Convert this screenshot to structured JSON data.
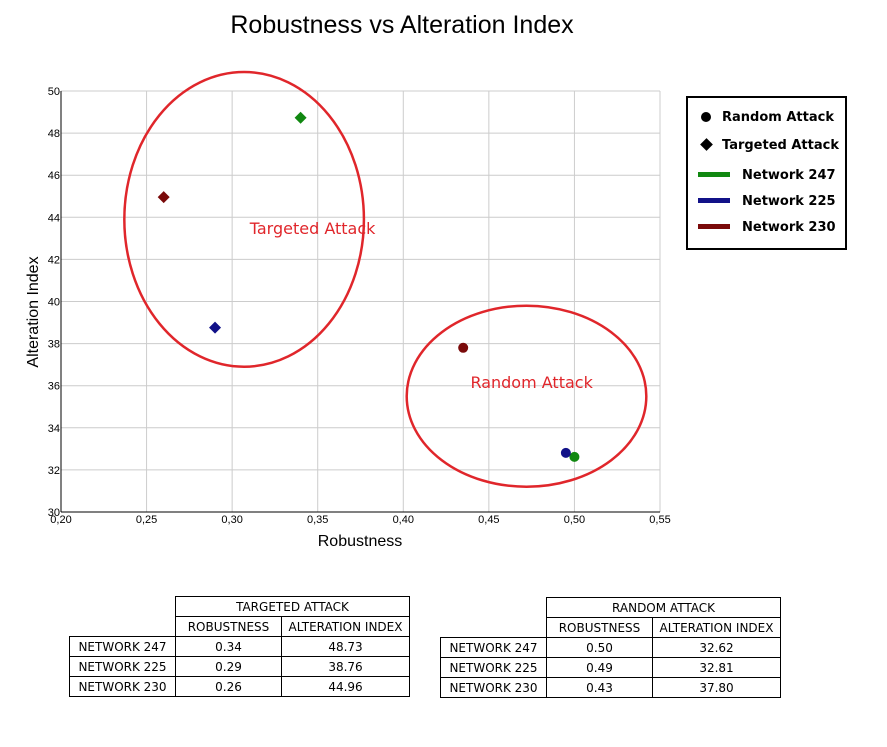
{
  "chart_data": {
    "type": "scatter",
    "title": "Robustness vs Alteration Index",
    "xlabel": "Robustness",
    "ylabel": "Alteration Index",
    "xlim": [
      0.2,
      0.55
    ],
    "ylim": [
      30,
      50
    ],
    "xticks": [
      "0,20",
      "0,25",
      "0,30",
      "0,35",
      "0,40",
      "0,45",
      "0,50",
      "0,55"
    ],
    "yticks": [
      "30",
      "32",
      "34",
      "36",
      "38",
      "40",
      "42",
      "44",
      "46",
      "48",
      "50"
    ],
    "xtick_values": [
      0.2,
      0.25,
      0.3,
      0.35,
      0.4,
      0.45,
      0.5,
      0.55
    ],
    "ytick_values": [
      30,
      32,
      34,
      36,
      38,
      40,
      42,
      44,
      46,
      48,
      50
    ],
    "grid": true,
    "legend_position": "right",
    "series": [
      {
        "name": "Network 247",
        "color": "#118811",
        "points": [
          {
            "attack": "targeted",
            "x": 0.34,
            "y": 48.73
          },
          {
            "attack": "random",
            "x": 0.5,
            "y": 32.62
          }
        ]
      },
      {
        "name": "Network 225",
        "color": "#111188",
        "points": [
          {
            "attack": "targeted",
            "x": 0.29,
            "y": 38.76
          },
          {
            "attack": "random",
            "x": 0.495,
            "y": 32.81
          }
        ]
      },
      {
        "name": "Network 230",
        "color": "#7a0a0a",
        "points": [
          {
            "attack": "targeted",
            "x": 0.26,
            "y": 44.96
          },
          {
            "attack": "random",
            "x": 0.435,
            "y": 37.8
          }
        ]
      }
    ],
    "annotations": [
      {
        "label": "Targeted Attack",
        "color": "#e0262b",
        "center_x": 0.307,
        "center_y": 43.9,
        "radius_x": 0.07,
        "radius_y": 7.0,
        "label_x": 0.347,
        "label_y": 43.2
      },
      {
        "label": "Random Attack",
        "color": "#e0262b",
        "center_x": 0.472,
        "center_y": 35.5,
        "radius_x": 0.07,
        "radius_y": 4.3,
        "label_x": 0.475,
        "label_y": 35.9
      }
    ]
  },
  "legend": {
    "items": [
      {
        "label": "Random Attack",
        "kind": "circle",
        "color": "#000000"
      },
      {
        "label": "Targeted Attack",
        "kind": "diamond",
        "color": "#000000"
      },
      {
        "label": "Network 247",
        "kind": "line",
        "color": "#118811"
      },
      {
        "label": "Network 225",
        "kind": "line",
        "color": "#111188"
      },
      {
        "label": "Network 230",
        "kind": "line",
        "color": "#7a0a0a"
      }
    ]
  },
  "tables": {
    "targeted": {
      "title": "TARGETED ATTACK",
      "col1": "ROBUSTNESS",
      "col2": "ALTERATION INDEX",
      "rows": [
        {
          "name": "NETWORK 247",
          "robustness": "0.34",
          "alteration": "48.73"
        },
        {
          "name": "NETWORK 225",
          "robustness": "0.29",
          "alteration": "38.76"
        },
        {
          "name": "NETWORK 230",
          "robustness": "0.26",
          "alteration": "44.96"
        }
      ]
    },
    "random": {
      "title": "RANDOM ATTACK",
      "col1": "ROBUSTNESS",
      "col2": "ALTERATION INDEX",
      "rows": [
        {
          "name": "NETWORK 247",
          "robustness": "0.50",
          "alteration": "32.62"
        },
        {
          "name": "NETWORK 225",
          "robustness": "0.49",
          "alteration": "32.81"
        },
        {
          "name": "NETWORK 230",
          "robustness": "0.43",
          "alteration": "37.80"
        }
      ]
    }
  }
}
